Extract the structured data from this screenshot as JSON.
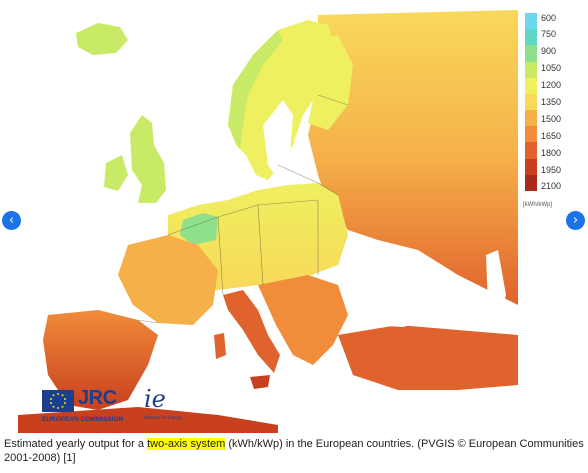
{
  "legend": {
    "labels": [
      "600",
      "750",
      "900",
      "1050",
      "1200",
      "1350",
      "1500",
      "1650",
      "1800",
      "1950",
      "2100"
    ],
    "unit": "[kWh/kWp]",
    "colors": [
      "#6fd6f0",
      "#5ed8c2",
      "#8fe08a",
      "#c8ea66",
      "#eef060",
      "#f8d95a",
      "#f6b04a",
      "#f08c3a",
      "#e0622c",
      "#c8401e",
      "#a82a18"
    ]
  },
  "logos": {
    "jrc_text": "JRC",
    "jrc_sub": "EUROPEAN COMMISSION",
    "ie_text": "ie",
    "ie_sub": "Institute for Energy"
  },
  "caption": {
    "before": "Estimated yearly output for a ",
    "highlight": "two-axis system",
    "after": " (kWh/kWp) in the European countries. (PVGIS © European Communities 2001-2008) [1]"
  },
  "nav": {
    "prev_icon": "chevron-left-icon",
    "next_icon": "chevron-right-icon",
    "prev_glyph": "‹",
    "next_glyph": "›"
  },
  "colors": {
    "sea": "#ffffff",
    "nav_button": "#1a73e8",
    "highlight": "#ffff00",
    "logo_blue": "#1b3f8f"
  }
}
